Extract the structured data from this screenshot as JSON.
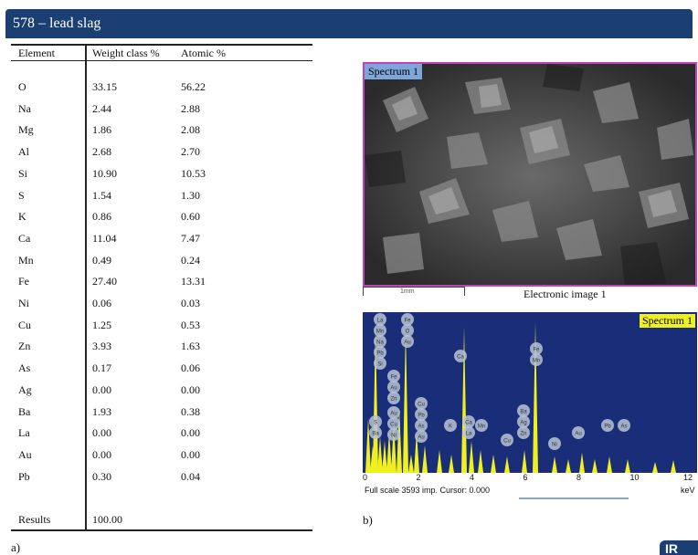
{
  "title": "578 – lead slag",
  "table": {
    "headers": [
      "Element",
      "Weight class %",
      "Atomic %"
    ],
    "rows": [
      [
        "O",
        "33.15",
        "56.22"
      ],
      [
        "Na",
        "2.44",
        "2.88"
      ],
      [
        "Mg",
        "1.86",
        "2.08"
      ],
      [
        "Al",
        "2.68",
        "2.70"
      ],
      [
        "Si",
        "10.90",
        "10.53"
      ],
      [
        "S",
        "1.54",
        "1.30"
      ],
      [
        "K",
        "0.86",
        "0.60"
      ],
      [
        "Ca",
        "11.04",
        "7.47"
      ],
      [
        "Mn",
        "0.49",
        "0.24"
      ],
      [
        "Fe",
        "27.40",
        "13.31"
      ],
      [
        "Ni",
        "0.06",
        "0.03"
      ],
      [
        "Cu",
        "1.25",
        "0.53"
      ],
      [
        "Zn",
        "3.93",
        "1.63"
      ],
      [
        "As",
        "0.17",
        "0.06"
      ],
      [
        "Ag",
        "0.00",
        "0.00"
      ],
      [
        "Ba",
        "1.93",
        "0.38"
      ],
      [
        "La",
        "0.00",
        "0.00"
      ],
      [
        "Au",
        "0.00",
        "0.00"
      ],
      [
        "Pb",
        "0.30",
        "0.04"
      ]
    ],
    "results_label": "Results",
    "results_value": "100.00"
  },
  "label_a": "a)",
  "label_b": "b)",
  "sem": {
    "spectrum_label": "Spectrum 1",
    "scale_text": "1mm",
    "caption": "Electronic image 1"
  },
  "spectrum": {
    "title": "Spectrum 1",
    "axis_ticks": [
      "0",
      "2",
      "4",
      "6",
      "8",
      "10",
      "12"
    ],
    "full_scale_text": "Full scale 3593 imp. Cursor: 0.000",
    "unit": "keV",
    "peak_labels": [
      "La",
      "Fe",
      "Mn",
      "O",
      "Na",
      "Au",
      "Pb",
      "Si",
      "Ca",
      "Fe",
      "Mn",
      "Fe",
      "Au",
      "Zn",
      "Cu",
      "Pb",
      "As",
      "Au",
      "Cu",
      "Ni",
      "Au",
      "S",
      "Ba",
      "K",
      "Ca",
      "Mn",
      "La",
      "Ba",
      "Ag",
      "Zn",
      "Cu",
      "Ni",
      "Au",
      "Pb",
      "As"
    ],
    "colors": {
      "background": "#1a2d78",
      "peaks": "#f0f020",
      "badge": "#b8c4d4"
    }
  },
  "logo_text": "IR"
}
